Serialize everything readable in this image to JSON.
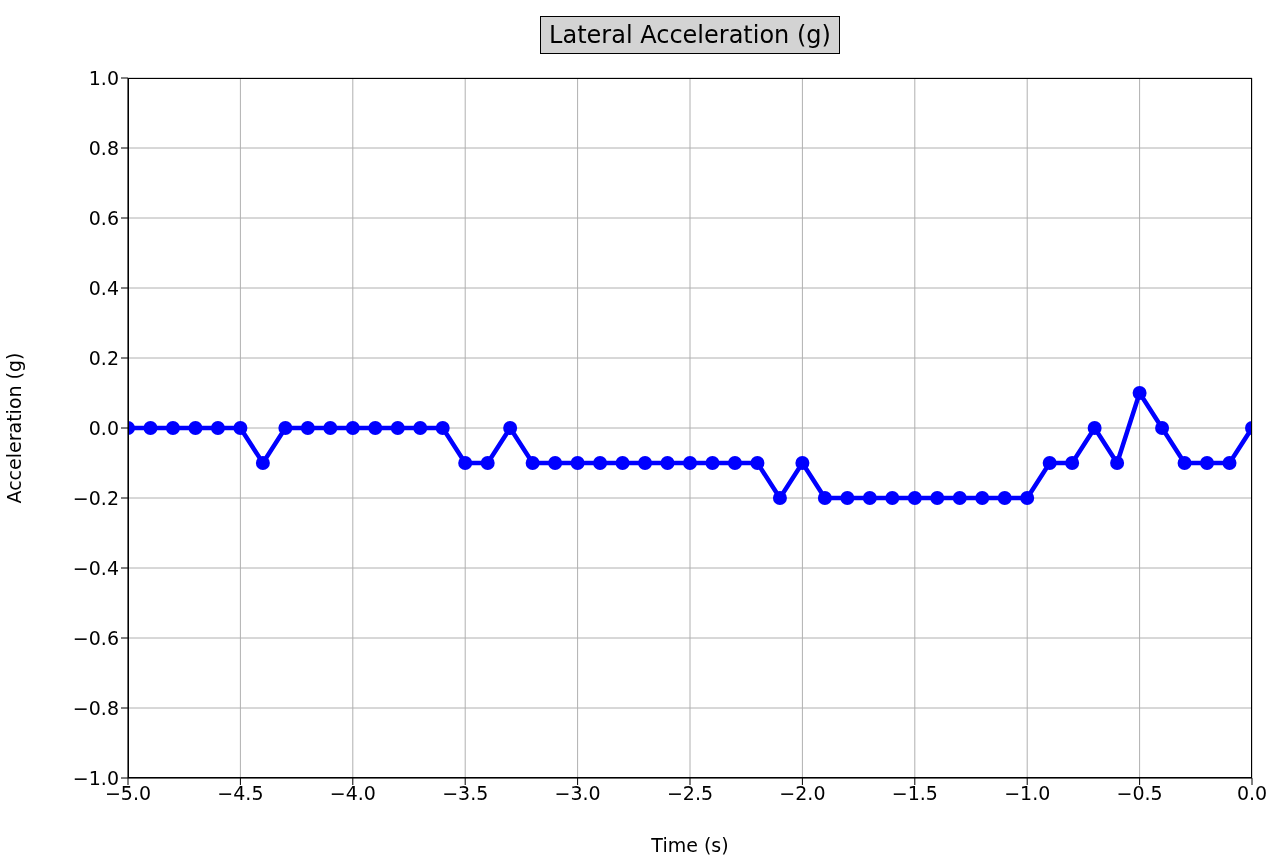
{
  "chart_data": {
    "type": "line",
    "title": "Lateral Acceleration (g)",
    "xlabel": "Time (s)",
    "ylabel": "Acceleration (g)",
    "x": [
      -5.0,
      -4.9,
      -4.8,
      -4.7,
      -4.6,
      -4.5,
      -4.4,
      -4.3,
      -4.2,
      -4.1,
      -4.0,
      -3.9,
      -3.8,
      -3.7,
      -3.6,
      -3.5,
      -3.4,
      -3.3,
      -3.2,
      -3.1,
      -3.0,
      -2.9,
      -2.8,
      -2.7,
      -2.6,
      -2.5,
      -2.4,
      -2.3,
      -2.2,
      -2.1,
      -2.0,
      -1.9,
      -1.8,
      -1.7,
      -1.6,
      -1.5,
      -1.4,
      -1.3,
      -1.2,
      -1.1,
      -1.0,
      -0.9,
      -0.8,
      -0.7,
      -0.6,
      -0.5,
      -0.4,
      -0.3,
      -0.2,
      -0.1,
      0.0
    ],
    "values": [
      0,
      0,
      0,
      0,
      0,
      0,
      -0.1,
      0,
      0,
      0,
      0,
      0,
      0,
      0,
      0,
      -0.1,
      -0.1,
      0,
      -0.1,
      -0.1,
      -0.1,
      -0.1,
      -0.1,
      -0.1,
      -0.1,
      -0.1,
      -0.1,
      -0.1,
      -0.1,
      -0.2,
      -0.1,
      -0.2,
      -0.2,
      -0.2,
      -0.2,
      -0.2,
      -0.2,
      -0.2,
      -0.2,
      -0.2,
      -0.2,
      -0.1,
      -0.1,
      0,
      -0.1,
      0.1,
      0,
      -0.1,
      -0.1,
      -0.1,
      0
    ],
    "color": "#0000ff",
    "marker": "circle",
    "line_style": "solid",
    "grid": true,
    "xlim": [
      -5.0,
      0.0
    ],
    "xticks": [
      {
        "value": -5.0,
        "label": "−5.0"
      },
      {
        "value": -4.5,
        "label": "−4.5"
      },
      {
        "value": -4.0,
        "label": "−4.0"
      },
      {
        "value": -3.5,
        "label": "−3.5"
      },
      {
        "value": -3.0,
        "label": "−3.0"
      },
      {
        "value": -2.5,
        "label": "−2.5"
      },
      {
        "value": -2.0,
        "label": "−2.0"
      },
      {
        "value": -1.5,
        "label": "−1.5"
      },
      {
        "value": -1.0,
        "label": "−1.0"
      },
      {
        "value": -0.5,
        "label": "−0.5"
      },
      {
        "value": 0.0,
        "label": "0.0"
      }
    ],
    "ylim": [
      -1.0,
      1.0
    ],
    "yticks": [
      {
        "value": -1.0,
        "label": "−1.0"
      },
      {
        "value": -0.8,
        "label": "−0.8"
      },
      {
        "value": -0.6,
        "label": "−0.6"
      },
      {
        "value": -0.4,
        "label": "−0.4"
      },
      {
        "value": -0.2,
        "label": "−0.2"
      },
      {
        "value": 0.0,
        "label": "0.0"
      },
      {
        "value": 0.2,
        "label": "0.2"
      },
      {
        "value": 0.4,
        "label": "0.4"
      },
      {
        "value": 0.6,
        "label": "0.6"
      },
      {
        "value": 0.8,
        "label": "0.8"
      },
      {
        "value": 1.0,
        "label": "1.0"
      }
    ]
  }
}
